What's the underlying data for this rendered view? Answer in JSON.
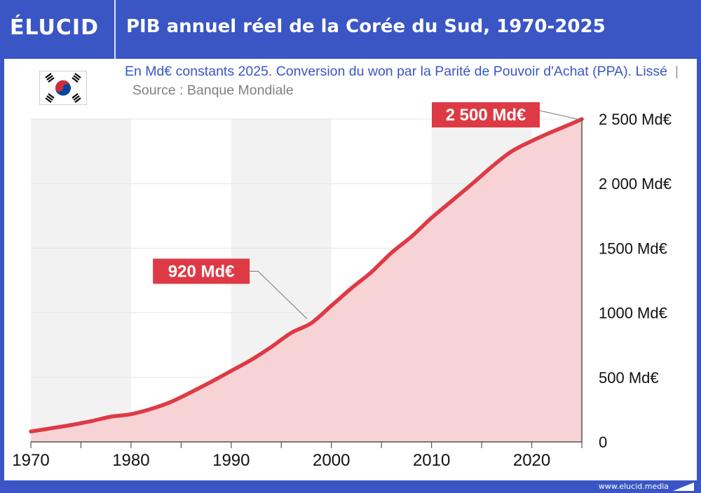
{
  "header": {
    "logo": "ÉLUCID",
    "title": "PIB annuel réel de la Corée du Sud, 1970-2025"
  },
  "subtitle": {
    "text": "En Md€ constants 2025. Conversion du won par la Parité de Pouvoir d'Achat (PPA). Lissé",
    "separator": "|",
    "source": "Source : Banque Mondiale"
  },
  "flag": {
    "icon": "south-korea-flag-icon"
  },
  "footer": {
    "url": "www.elucid.media"
  },
  "colors": {
    "brand_blue": "#3a56c5",
    "line_red": "#de3a45",
    "area_fill": "#f7d3d6",
    "band_gray": "#f2f2f2"
  },
  "chart_data": {
    "type": "area",
    "x": [
      1970,
      1972,
      1974,
      1976,
      1978,
      1980,
      1982,
      1984,
      1986,
      1988,
      1990,
      1992,
      1994,
      1996,
      1998,
      2000,
      2002,
      2004,
      2006,
      2008,
      2010,
      2012,
      2014,
      2016,
      2018,
      2020,
      2022,
      2024,
      2025
    ],
    "series": [
      {
        "values": [
          80,
          105,
          130,
          160,
          195,
          215,
          255,
          310,
          385,
          465,
          550,
          635,
          735,
          845,
          920,
          1055,
          1190,
          1315,
          1465,
          1590,
          1735,
          1865,
          1995,
          2130,
          2250,
          2330,
          2400,
          2465,
          2500
        ]
      }
    ],
    "xlim": [
      1970,
      2025
    ],
    "ylim": [
      0,
      2500
    ],
    "x_ticks": [
      1970,
      1980,
      1990,
      2000,
      2010,
      2020
    ],
    "y_ticks": [
      0,
      500,
      1000,
      1500,
      2000,
      2500
    ],
    "y_tick_labels": [
      "0",
      "500 Md€",
      "1000 Md€",
      "1500 Md€",
      "2 000 Md€",
      "2 500 Md€"
    ],
    "annotations": [
      {
        "x": 1998,
        "y": 920,
        "label": "920 Md€"
      },
      {
        "x": 2025,
        "y": 2500,
        "label": "2 500 Md€"
      }
    ],
    "grid": true,
    "alternating_decade_bands": true
  }
}
